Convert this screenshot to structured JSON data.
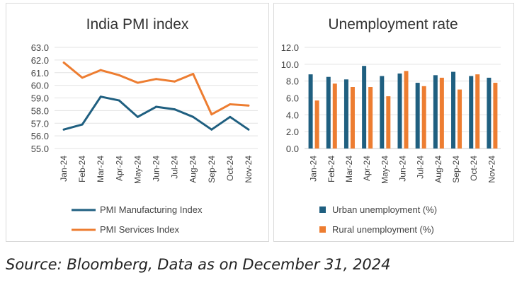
{
  "chart_data": [
    {
      "type": "line",
      "title": "India PMI index",
      "categories": [
        "Jan-24",
        "Feb-24",
        "Mar-24",
        "Apr-24",
        "May-24",
        "Jun-24",
        "Jul-24",
        "Aug-24",
        "Sep-24",
        "Oct-24",
        "Nov-24"
      ],
      "ylim": [
        55,
        63
      ],
      "yticks": [
        "63.0",
        "62.0",
        "61.0",
        "60.0",
        "59.0",
        "58.0",
        "57.0",
        "56.0",
        "55.0"
      ],
      "grid": true,
      "legend": "bottom",
      "series": [
        {
          "name": "PMI Manufacturing Index",
          "color": "#1f5f80",
          "values": [
            56.5,
            56.9,
            59.1,
            58.8,
            57.5,
            58.3,
            58.1,
            57.5,
            56.5,
            57.5,
            56.5
          ]
        },
        {
          "name": "PMI Services Index",
          "color": "#ed7d31",
          "values": [
            61.8,
            60.6,
            61.2,
            60.8,
            60.2,
            60.5,
            60.3,
            60.9,
            57.7,
            58.5,
            58.4
          ]
        }
      ]
    },
    {
      "type": "bar",
      "title": "Unemployment rate",
      "categories": [
        "Jan-24",
        "Feb-24",
        "Mar-24",
        "Apr-24",
        "May-24",
        "Jun-24",
        "Jul-24",
        "Aug-24",
        "Sep-24",
        "Oct-24",
        "Nov-24"
      ],
      "ylim": [
        0,
        12
      ],
      "yticks": [
        "12.0",
        "10.0",
        "8.0",
        "6.0",
        "4.0",
        "2.0",
        "0.0"
      ],
      "grid": true,
      "legend": "bottom",
      "series": [
        {
          "name": "Urban unemployment (%)",
          "color": "#1f5f80",
          "values": [
            8.8,
            8.5,
            8.2,
            9.8,
            8.6,
            8.9,
            7.8,
            8.7,
            9.1,
            8.6,
            8.4
          ]
        },
        {
          "name": "Rural unemployment (%)",
          "color": "#ed7d31",
          "values": [
            5.7,
            7.7,
            7.3,
            7.3,
            6.2,
            9.2,
            7.4,
            8.4,
            7.0,
            8.8,
            7.8
          ]
        }
      ]
    }
  ],
  "source": "Source: Bloomberg, Data as on December 31, 2024"
}
